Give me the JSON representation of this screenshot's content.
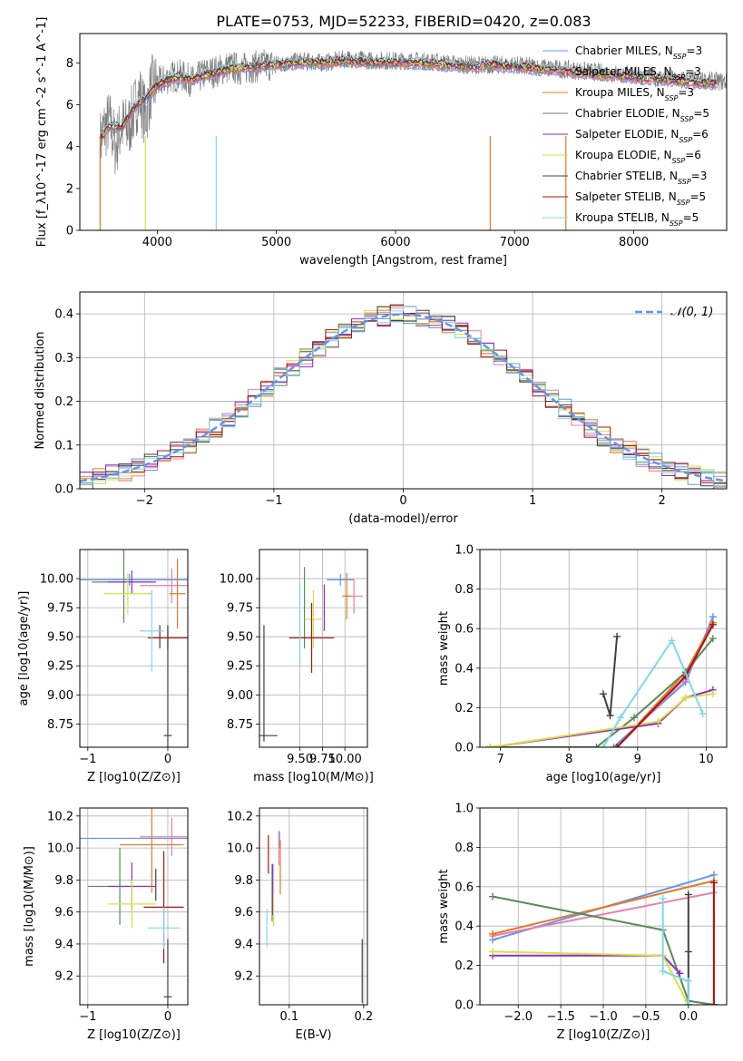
{
  "figure": {
    "title": "PLATE=0753, MJD=52233, FIBERID=0420, z=0.083"
  },
  "models": [
    {
      "label": "Chabrier MILES, N",
      "sub": "SSP",
      "tail": "=3",
      "color": "#6495ed"
    },
    {
      "label": "Salpeter MILES, N",
      "sub": "SSP",
      "tail": "=3",
      "color": "#e87fac"
    },
    {
      "label": "Kroupa MILES, N",
      "sub": "SSP",
      "tail": "=3",
      "color": "#e07b28"
    },
    {
      "label": "Chabrier ELODIE, N",
      "sub": "SSP",
      "tail": "=5",
      "color": "#5a8a5a"
    },
    {
      "label": "Salpeter ELODIE, N",
      "sub": "SSP",
      "tail": "=6",
      "color": "#8b2fc9"
    },
    {
      "label": "Kroupa ELODIE, N",
      "sub": "SSP",
      "tail": "=6",
      "color": "#d8e040"
    },
    {
      "label": "Chabrier STELIB, N",
      "sub": "SSP",
      "tail": "=3",
      "color": "#404040"
    },
    {
      "label": "Salpeter STELIB, N",
      "sub": "SSP",
      "tail": "=5",
      "color": "#b01010"
    },
    {
      "label": "Kroupa STELIB, N",
      "sub": "SSP",
      "tail": "=5",
      "color": "#7fd8e8"
    }
  ],
  "chart_data": [
    {
      "id": "spectrum",
      "type": "line",
      "title": "PLATE=0753, MJD=52233, FIBERID=0420, z=0.083",
      "xlabel": "wavelength [Angstrom, rest frame]",
      "ylabel": "Flux [f_λ10^-17 erg cm^-2 s^-1 A^-1]",
      "xlim": [
        3350,
        8780
      ],
      "ylim": [
        0,
        9.4
      ],
      "xticks": [
        4000,
        5000,
        6000,
        7000,
        8000
      ],
      "yticks": [
        0,
        2,
        4,
        6,
        8
      ],
      "legend": "right",
      "data_color": "#808080",
      "data_points": [
        [
          3500,
          3.8
        ],
        [
          3550,
          4.8
        ],
        [
          3600,
          5.2
        ],
        [
          3650,
          4.0
        ],
        [
          3700,
          5.0
        ],
        [
          3750,
          4.8
        ],
        [
          3800,
          5.6
        ],
        [
          3850,
          6.5
        ],
        [
          3900,
          5.4
        ],
        [
          3950,
          6.8
        ],
        [
          4000,
          7.0
        ],
        [
          4100,
          7.3
        ],
        [
          4200,
          7.4
        ],
        [
          4300,
          7.1
        ],
        [
          4400,
          7.5
        ],
        [
          4500,
          7.6
        ],
        [
          4600,
          7.8
        ],
        [
          4700,
          7.7
        ],
        [
          4800,
          7.8
        ],
        [
          4900,
          7.9
        ],
        [
          5000,
          7.9
        ],
        [
          5200,
          8.1
        ],
        [
          5400,
          8.0
        ],
        [
          5600,
          8.2
        ],
        [
          5800,
          8.1
        ],
        [
          6000,
          8.1
        ],
        [
          6200,
          8.1
        ],
        [
          6400,
          8.0
        ],
        [
          6600,
          7.9
        ],
        [
          6800,
          7.9
        ],
        [
          7000,
          7.9
        ],
        [
          7200,
          7.8
        ],
        [
          7400,
          7.7
        ],
        [
          7600,
          7.6
        ],
        [
          7800,
          7.5
        ],
        [
          8000,
          7.4
        ],
        [
          8200,
          7.3
        ],
        [
          8400,
          7.2
        ],
        [
          8780,
          7.1
        ]
      ],
      "model_points": [
        [
          3500,
          4.2
        ],
        [
          3600,
          5.0
        ],
        [
          3700,
          4.9
        ],
        [
          3800,
          5.8
        ],
        [
          3900,
          6.3
        ],
        [
          4000,
          6.9
        ],
        [
          4100,
          7.2
        ],
        [
          4200,
          7.3
        ],
        [
          4300,
          7.2
        ],
        [
          4400,
          7.4
        ],
        [
          4500,
          7.5
        ],
        [
          4600,
          7.7
        ],
        [
          4800,
          7.8
        ],
        [
          5000,
          7.9
        ],
        [
          5200,
          8.0
        ],
        [
          5400,
          8.0
        ],
        [
          5600,
          8.1
        ],
        [
          5800,
          8.0
        ],
        [
          6000,
          8.0
        ],
        [
          6200,
          8.0
        ],
        [
          6400,
          7.9
        ],
        [
          6600,
          7.8
        ],
        [
          6800,
          7.9
        ],
        [
          7000,
          7.8
        ],
        [
          7200,
          7.7
        ],
        [
          7400,
          7.6
        ],
        [
          7600,
          7.5
        ],
        [
          7800,
          7.4
        ],
        [
          8000,
          7.3
        ],
        [
          8200,
          7.2
        ],
        [
          8400,
          7.1
        ],
        [
          8600,
          7.0
        ]
      ]
    },
    {
      "id": "residuals",
      "type": "line",
      "xlabel": "(data-model)/error",
      "ylabel": "Normed distribution",
      "xlim": [
        -2.5,
        2.5
      ],
      "ylim": [
        0,
        0.45
      ],
      "xticks": [
        -2,
        -1,
        0,
        1,
        2
      ],
      "yticks": [
        0.0,
        0.1,
        0.2,
        0.3,
        0.4
      ],
      "legend": "top-right",
      "gaussian_label": "𝒩(0, 1)",
      "gaussian_color": "#6495ed",
      "bin_width": 0.1
    },
    {
      "id": "age_vs_Z",
      "type": "scatter",
      "xlabel": "Z [log10(Z/Z⊙)]",
      "ylabel": "age  [log10(age/yr)]",
      "xlim": [
        -1.1,
        0.25
      ],
      "ylim": [
        8.55,
        10.25
      ],
      "xticks": [
        -1,
        0
      ],
      "yticks": [
        8.75,
        9.0,
        9.25,
        9.5,
        9.75,
        10.0
      ],
      "errorbars": [
        {
          "x": -0.48,
          "y": 9.99,
          "xerr": 1.05,
          "yerr": 0.05,
          "color": "#6495ed"
        },
        {
          "x": 0.05,
          "y": 9.94,
          "xerr": 0.4,
          "yerr": 0.15,
          "color": "#e87fac"
        },
        {
          "x": 0.12,
          "y": 9.87,
          "xerr": 0.1,
          "yerr": 0.3,
          "color": "#e07b28"
        },
        {
          "x": -0.55,
          "y": 9.97,
          "xerr": 0.4,
          "yerr": 0.35,
          "color": "#5a8a5a"
        },
        {
          "x": -0.45,
          "y": 9.97,
          "xerr": 0.3,
          "yerr": 0.1,
          "color": "#8b2fc9"
        },
        {
          "x": -0.5,
          "y": 9.87,
          "xerr": 0.3,
          "yerr": 0.18,
          "color": "#d8e040"
        },
        {
          "x": -0.1,
          "y": 9.5,
          "xerr": 0.0,
          "yerr": 0.1,
          "color": "#404040"
        },
        {
          "x": 0.0,
          "y": 9.49,
          "xerr": 0.25,
          "yerr": 0.1,
          "color": "#b01010"
        },
        {
          "x": -0.2,
          "y": 9.55,
          "xerr": 0.15,
          "yerr": 0.35,
          "color": "#7fd8e8"
        },
        {
          "x": 0.0,
          "y": 8.65,
          "xerr": 0.05,
          "yerr": 0.95,
          "color": "#404040"
        }
      ]
    },
    {
      "id": "age_vs_mass",
      "type": "scatter",
      "xlabel": "mass [log10(M/M⊙)]",
      "ylabel": "",
      "xlim": [
        9.05,
        10.25
      ],
      "ylim": [
        8.55,
        10.25
      ],
      "xticks": [
        9.5,
        9.75,
        10.0
      ],
      "yticks": [
        8.75,
        9.0,
        9.25,
        9.5,
        9.75,
        10.0
      ],
      "errorbars": [
        {
          "x": 9.95,
          "y": 9.99,
          "xerr": 0.15,
          "yerr": 0.05,
          "color": "#6495ed"
        },
        {
          "x": 10.1,
          "y": 9.85,
          "xerr": 0.1,
          "yerr": 0.15,
          "color": "#e87fac"
        },
        {
          "x": 10.02,
          "y": 9.85,
          "xerr": 0.05,
          "yerr": 0.2,
          "color": "#e07b28"
        },
        {
          "x": 9.55,
          "y": 9.75,
          "xerr": 0.0,
          "yerr": 0.35,
          "color": "#5a8a5a"
        },
        {
          "x": 9.77,
          "y": 9.75,
          "xerr": 0.0,
          "yerr": 0.2,
          "color": "#8b2fc9"
        },
        {
          "x": 9.65,
          "y": 9.65,
          "xerr": 0.1,
          "yerr": 0.25,
          "color": "#d8e040"
        },
        {
          "x": 9.1,
          "y": 8.65,
          "xerr": 0.15,
          "yerr": 0.0,
          "color": "#404040"
        },
        {
          "x": 9.63,
          "y": 9.49,
          "xerr": 0.25,
          "yerr": 0.3,
          "color": "#b01010"
        },
        {
          "x": 9.5,
          "y": 9.6,
          "xerr": 0.0,
          "yerr": 0.35,
          "color": "#7fd8e8"
        },
        {
          "x": 9.1,
          "y": 9.1,
          "xerr": 0.0,
          "yerr": 0.5,
          "color": "#404040"
        }
      ]
    },
    {
      "id": "massweight_vs_age",
      "type": "line",
      "xlabel": "age  [log10(age/yr)]",
      "ylabel": "mass weight",
      "xlim": [
        6.7,
        10.3
      ],
      "ylim": [
        0.0,
        1.0
      ],
      "xticks": [
        7,
        8,
        9,
        10
      ],
      "yticks": [
        0.0,
        0.2,
        0.4,
        0.6,
        0.8,
        1.0
      ],
      "series": [
        {
          "color": "#6495ed",
          "x": [
            8.65,
            9.7,
            10.1
          ],
          "y": [
            0.0,
            0.33,
            0.66
          ]
        },
        {
          "color": "#e87fac",
          "x": [
            8.7,
            9.7,
            10.1
          ],
          "y": [
            0.0,
            0.35,
            0.63
          ]
        },
        {
          "color": "#e07b28",
          "x": [
            8.7,
            9.7,
            10.1
          ],
          "y": [
            0.0,
            0.38,
            0.63
          ]
        },
        {
          "color": "#5a8a5a",
          "x": [
            6.85,
            8.4,
            8.95,
            9.7,
            10.1
          ],
          "y": [
            0.0,
            0.0,
            0.15,
            0.38,
            0.55
          ]
        },
        {
          "color": "#8b2fc9",
          "x": [
            6.85,
            9.3,
            9.7,
            10.1
          ],
          "y": [
            0.0,
            0.12,
            0.25,
            0.29
          ]
        },
        {
          "color": "#d8e040",
          "x": [
            6.85,
            9.3,
            9.7,
            10.1
          ],
          "y": [
            0.0,
            0.13,
            0.25,
            0.27
          ]
        },
        {
          "color": "#404040",
          "x": [
            8.5,
            8.6,
            8.7
          ],
          "y": [
            0.27,
            0.16,
            0.56
          ]
        },
        {
          "color": "#b01010",
          "x": [
            8.7,
            9.7,
            10.1
          ],
          "y": [
            0.0,
            0.36,
            0.62
          ]
        },
        {
          "color": "#7fd8e8",
          "x": [
            8.5,
            8.75,
            9.5,
            9.95
          ],
          "y": [
            0.0,
            0.15,
            0.54,
            0.17
          ]
        }
      ]
    },
    {
      "id": "mass_vs_Z",
      "type": "scatter",
      "xlabel": "Z [log10(Z/Z⊙)]",
      "ylabel": "mass [log10(M/M⊙)]",
      "xlim": [
        -1.1,
        0.25
      ],
      "ylim": [
        9.02,
        10.25
      ],
      "xticks": [
        -1,
        0
      ],
      "yticks": [
        9.2,
        9.4,
        9.6,
        9.8,
        10.0,
        10.2
      ],
      "errorbars": [
        {
          "x": -0.45,
          "y": 10.06,
          "xerr": 1.05,
          "yerr": 0.0,
          "color": "#6495ed"
        },
        {
          "x": 0.05,
          "y": 10.07,
          "xerr": 0.4,
          "yerr": 0.12,
          "color": "#e87fac"
        },
        {
          "x": -0.2,
          "y": 10.02,
          "xerr": 0.4,
          "yerr": 0.3,
          "color": "#e07b28"
        },
        {
          "x": -0.6,
          "y": 9.76,
          "xerr": 0.4,
          "yerr": 0.24,
          "color": "#5a8a5a"
        },
        {
          "x": -0.45,
          "y": 9.76,
          "xerr": 0.3,
          "yerr": 0.15,
          "color": "#8b2fc9"
        },
        {
          "x": -0.45,
          "y": 9.65,
          "xerr": 0.3,
          "yerr": 0.15,
          "color": "#d8e040"
        },
        {
          "x": -0.15,
          "y": 9.77,
          "xerr": 0.0,
          "yerr": 0.1,
          "color": "#404040"
        },
        {
          "x": -0.05,
          "y": 9.63,
          "xerr": 0.25,
          "yerr": 0.35,
          "color": "#b01010"
        },
        {
          "x": -0.05,
          "y": 9.5,
          "xerr": 0.2,
          "yerr": 0.13,
          "color": "#7fd8e8"
        },
        {
          "x": 0.0,
          "y": 9.07,
          "xerr": 0.05,
          "yerr": 0.36,
          "color": "#404040"
        }
      ]
    },
    {
      "id": "mass_vs_EBV",
      "type": "scatter",
      "xlabel": "E(B-V)",
      "ylabel": "",
      "xlim": [
        0.06,
        0.205
      ],
      "ylim": [
        9.02,
        10.25
      ],
      "xticks": [
        0.1,
        0.2
      ],
      "yticks": [
        9.2,
        9.4,
        9.6,
        9.8,
        10.0,
        10.2
      ],
      "errorbars": [
        {
          "x": 0.087,
          "y": 10.05,
          "xerr": 0.0,
          "yerr": 0.05,
          "color": "#6495ed"
        },
        {
          "x": 0.086,
          "y": 10.0,
          "xerr": 0.0,
          "yerr": 0.11,
          "color": "#e87fac"
        },
        {
          "x": 0.088,
          "y": 9.88,
          "xerr": 0.0,
          "yerr": 0.17,
          "color": "#e07b28"
        },
        {
          "x": 0.077,
          "y": 9.72,
          "xerr": 0.0,
          "yerr": 0.18,
          "color": "#5a8a5a"
        },
        {
          "x": 0.078,
          "y": 9.74,
          "xerr": 0.0,
          "yerr": 0.16,
          "color": "#8b2fc9"
        },
        {
          "x": 0.079,
          "y": 9.61,
          "xerr": 0.0,
          "yerr": 0.1,
          "color": "#d8e040"
        },
        {
          "x": 0.198,
          "y": 9.23,
          "xerr": 0.0,
          "yerr": 0.2,
          "color": "#404040"
        },
        {
          "x": 0.072,
          "y": 9.96,
          "xerr": 0.0,
          "yerr": 0.12,
          "color": "#b01010"
        },
        {
          "x": 0.07,
          "y": 9.5,
          "xerr": 0.0,
          "yerr": 0.12,
          "color": "#7fd8e8"
        }
      ]
    },
    {
      "id": "massweight_vs_Z",
      "type": "line",
      "xlabel": "Z [log10(Z/Z⊙)]",
      "ylabel": "mass weight",
      "xlim": [
        -2.45,
        0.45
      ],
      "ylim": [
        0.0,
        1.0
      ],
      "xticks": [
        -2.0,
        -1.5,
        -1.0,
        -0.5,
        0.0
      ],
      "yticks": [
        0.0,
        0.2,
        0.4,
        0.6,
        0.8,
        1.0
      ],
      "series": [
        {
          "color": "#6495ed",
          "x": [
            -2.3,
            0.3
          ],
          "y": [
            0.33,
            0.66
          ]
        },
        {
          "color": "#e87fac",
          "x": [
            -2.3,
            0.3
          ],
          "y": [
            0.35,
            0.57
          ]
        },
        {
          "color": "#e07b28",
          "x": [
            -2.3,
            0.3,
            0.3
          ],
          "y": [
            0.36,
            0.63,
            0.0
          ]
        },
        {
          "color": "#5a8a5a",
          "x": [
            -2.3,
            -0.3,
            0.0,
            0.3
          ],
          "y": [
            0.55,
            0.38,
            0.02,
            0.0
          ]
        },
        {
          "color": "#8b2fc9",
          "x": [
            -2.3,
            -0.3,
            -0.1
          ],
          "y": [
            0.25,
            0.25,
            0.16
          ]
        },
        {
          "color": "#d8e040",
          "x": [
            -2.3,
            -0.3,
            0.0
          ],
          "y": [
            0.27,
            0.25,
            0.0
          ]
        },
        {
          "color": "#404040",
          "x": [
            0.0,
            0.0,
            0.0
          ],
          "y": [
            0.56,
            0.27,
            0.0
          ]
        },
        {
          "color": "#b01010",
          "x": [
            0.3,
            0.3
          ],
          "y": [
            0.62,
            0.0
          ]
        },
        {
          "color": "#7fd8e8",
          "x": [
            -0.3,
            -0.3,
            0.0,
            0.0
          ],
          "y": [
            0.54,
            0.17,
            0.12,
            0.0
          ]
        }
      ]
    }
  ]
}
